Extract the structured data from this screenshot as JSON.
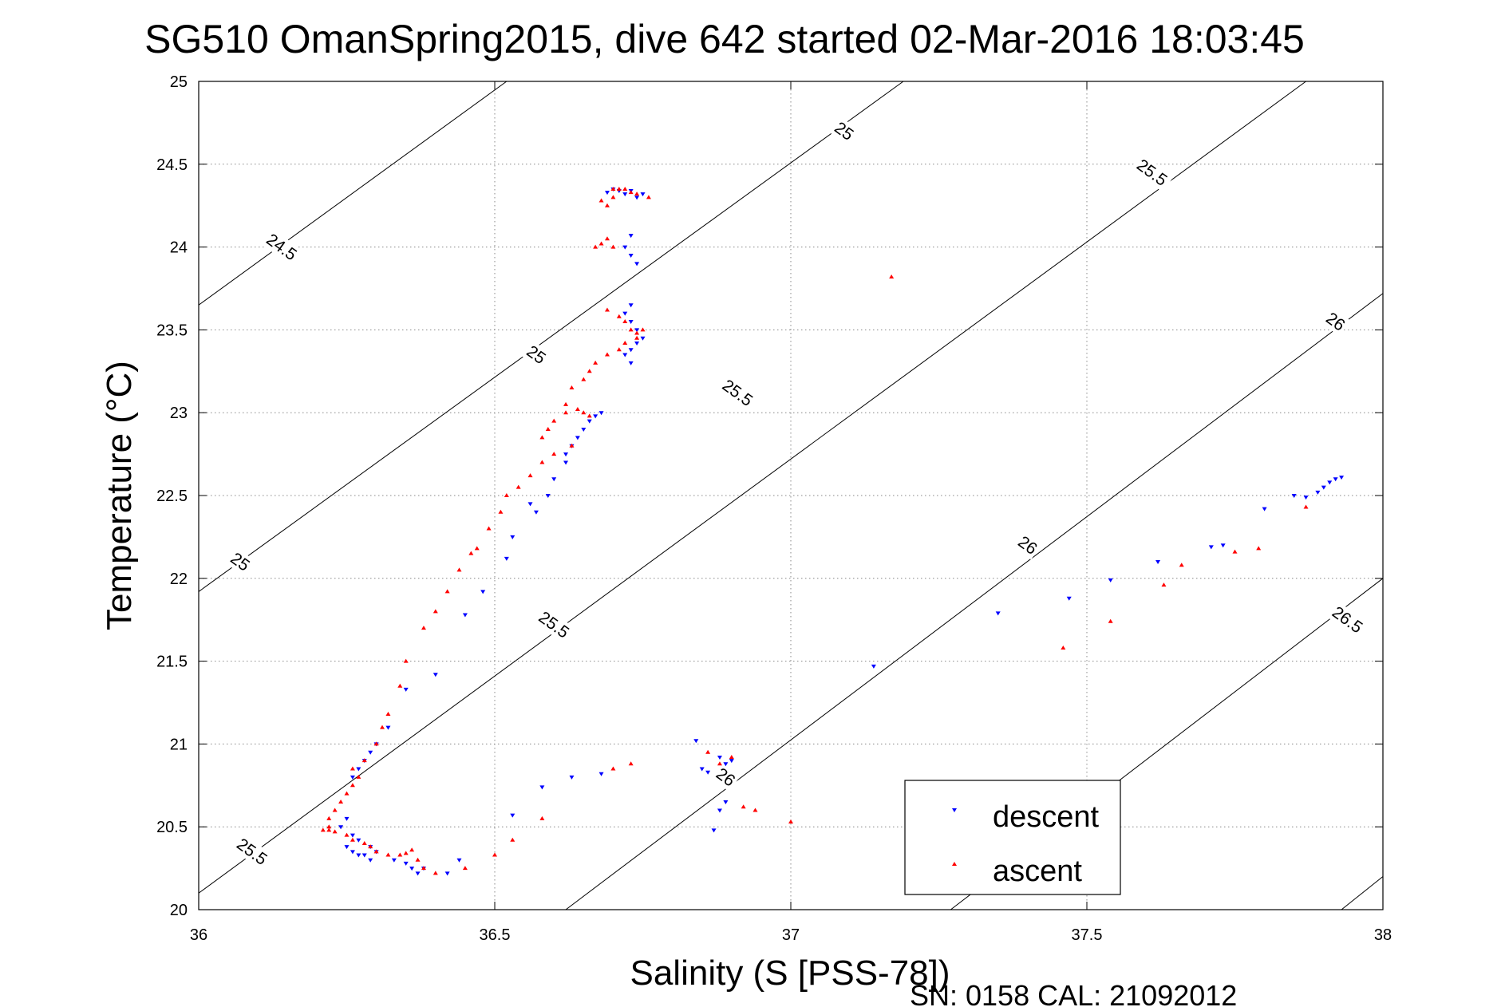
{
  "chart_data": {
    "type": "scatter",
    "title": "SG510 OmanSpring2015, dive 642 started 02-Mar-2016 18:03:45",
    "xlabel": "Salinity (S [PSS-78])",
    "ylabel": "Temperature (°C)",
    "footer": "SN: 0158  CAL: 21092012",
    "xlim": [
      36,
      38
    ],
    "ylim": [
      20,
      25
    ],
    "xticks": [
      36,
      36.5,
      37,
      37.5,
      38
    ],
    "yticks": [
      20,
      20.5,
      21,
      21.5,
      22,
      22.5,
      23,
      23.5,
      24,
      24.5,
      25
    ],
    "xtick_labels": [
      "36",
      "36.5",
      "37",
      "37.5",
      "38"
    ],
    "ytick_labels": [
      "20",
      "20.5",
      "21",
      "21.5",
      "22",
      "22.5",
      "23",
      "23.5",
      "24",
      "24.5",
      "25"
    ],
    "grid": true,
    "legend_position": "bottom-right",
    "isopycnals": [
      {
        "sigma": 24.5,
        "x0": 36,
        "y0": 23.65,
        "x1": 36.52,
        "y1": 25.0
      },
      {
        "sigma": 25,
        "x0": 36,
        "y0": 21.92,
        "x1": 37.19,
        "y1": 25.0
      },
      {
        "sigma": 25.5,
        "x0": 36,
        "y0": 20.1,
        "x1": 37.87,
        "y1": 25.0
      },
      {
        "sigma": 26,
        "x0": 36.62,
        "y0": 20.0,
        "x1": 38,
        "y1": 23.72
      },
      {
        "sigma": 26.5,
        "x0": 37.27,
        "y0": 20.0,
        "x1": 38,
        "y1": 22.0
      },
      {
        "sigma": 27,
        "x0": 37.93,
        "y0": 20.0,
        "x1": 38,
        "y1": 20.2
      }
    ],
    "isopycnal_labels": [
      {
        "text": "24.5",
        "x": 36.14,
        "y": 24.0
      },
      {
        "text": "25",
        "x": 37.09,
        "y": 24.7
      },
      {
        "text": "25",
        "x": 36.07,
        "y": 22.1
      },
      {
        "text": "25",
        "x": 36.57,
        "y": 23.35
      },
      {
        "text": "25.5",
        "x": 37.61,
        "y": 24.45
      },
      {
        "text": "25.5",
        "x": 36.91,
        "y": 23.12
      },
      {
        "text": "25.5",
        "x": 36.6,
        "y": 21.72
      },
      {
        "text": "25.5",
        "x": 36.09,
        "y": 20.35
      },
      {
        "text": "26",
        "x": 37.92,
        "y": 23.55
      },
      {
        "text": "26",
        "x": 37.4,
        "y": 22.2
      },
      {
        "text": "26",
        "x": 36.89,
        "y": 20.8
      },
      {
        "text": "26.5",
        "x": 37.94,
        "y": 21.75
      }
    ],
    "series": [
      {
        "name": "descent",
        "color": "#0000ff",
        "marker": "triangle-down",
        "x": [
          36.69,
          36.7,
          36.71,
          36.72,
          36.73,
          36.74,
          36.75,
          36.73,
          36.72,
          36.73,
          36.74,
          36.73,
          36.72,
          36.73,
          36.74,
          36.75,
          36.74,
          36.73,
          36.72,
          36.73,
          36.68,
          36.67,
          36.66,
          36.65,
          36.64,
          36.63,
          36.62,
          36.62,
          36.6,
          36.59,
          36.57,
          36.56,
          36.53,
          36.52,
          36.48,
          36.45,
          36.4,
          36.35,
          36.32,
          36.3,
          36.29,
          36.28,
          36.27,
          36.26,
          36.25,
          36.24,
          36.26,
          36.27,
          36.29,
          36.3,
          36.28,
          36.26,
          36.25,
          36.27,
          36.29,
          36.33,
          36.35,
          36.36,
          36.37,
          36.38,
          36.42,
          36.44,
          36.53,
          36.58,
          36.63,
          36.68,
          36.84,
          36.85,
          36.86,
          36.88,
          36.89,
          36.9,
          36.87,
          36.88,
          36.89,
          37.14,
          37.35,
          37.47,
          37.54,
          37.62,
          37.71,
          37.73,
          37.8,
          37.85,
          37.87,
          37.89,
          37.9,
          37.91,
          37.92,
          37.93
        ],
        "y": [
          24.33,
          24.35,
          24.34,
          24.32,
          24.34,
          24.3,
          24.32,
          24.07,
          24.0,
          23.95,
          23.9,
          23.65,
          23.6,
          23.55,
          23.5,
          23.45,
          23.42,
          23.38,
          23.35,
          23.3,
          23.0,
          22.98,
          22.95,
          22.9,
          22.85,
          22.8,
          22.75,
          22.7,
          22.6,
          22.5,
          22.4,
          22.45,
          22.25,
          22.12,
          21.92,
          21.78,
          21.42,
          21.33,
          21.1,
          21.0,
          20.95,
          20.9,
          20.85,
          20.8,
          20.55,
          20.5,
          20.45,
          20.42,
          20.38,
          20.35,
          20.33,
          20.35,
          20.38,
          20.33,
          20.3,
          20.3,
          20.28,
          20.25,
          20.22,
          20.25,
          20.22,
          20.3,
          20.57,
          20.74,
          20.8,
          20.82,
          21.02,
          20.85,
          20.83,
          20.92,
          20.88,
          20.9,
          20.48,
          20.6,
          20.65,
          21.47,
          21.79,
          21.88,
          21.99,
          22.1,
          22.19,
          22.2,
          22.42,
          22.5,
          22.49,
          22.52,
          22.55,
          22.58,
          22.6,
          22.61
        ]
      },
      {
        "name": "ascent",
        "color": "#ff0000",
        "marker": "triangle-up",
        "x": [
          36.7,
          36.71,
          36.72,
          36.73,
          36.74,
          36.76,
          36.68,
          36.69,
          36.7,
          36.67,
          36.68,
          36.69,
          36.7,
          36.69,
          36.71,
          36.72,
          36.73,
          36.74,
          36.75,
          36.74,
          36.72,
          36.71,
          36.69,
          36.67,
          36.66,
          36.65,
          36.63,
          36.62,
          36.62,
          36.6,
          36.58,
          36.59,
          36.64,
          36.65,
          36.66,
          36.63,
          36.6,
          36.58,
          36.56,
          36.54,
          36.52,
          36.51,
          36.49,
          36.47,
          36.46,
          36.44,
          36.42,
          36.4,
          36.38,
          36.35,
          36.34,
          36.32,
          36.31,
          36.3,
          36.28,
          36.27,
          36.26,
          36.26,
          36.25,
          36.24,
          36.23,
          36.22,
          36.22,
          36.21,
          36.22,
          36.23,
          36.25,
          36.26,
          36.28,
          36.29,
          36.3,
          36.32,
          36.34,
          36.35,
          36.36,
          36.37,
          36.38,
          36.4,
          36.45,
          36.5,
          36.53,
          36.58,
          36.7,
          36.73,
          36.86,
          36.88,
          36.9,
          36.92,
          36.94,
          37.0,
          37.17,
          37.46,
          37.54,
          37.63,
          37.66,
          37.75,
          37.79,
          37.87
        ],
        "y": [
          24.35,
          24.35,
          24.35,
          24.33,
          24.32,
          24.3,
          24.28,
          24.25,
          24.3,
          24.0,
          24.02,
          24.05,
          24.0,
          23.62,
          23.58,
          23.55,
          23.5,
          23.48,
          23.5,
          23.45,
          23.42,
          23.38,
          23.35,
          23.3,
          23.25,
          23.2,
          23.15,
          23.05,
          23.0,
          22.95,
          22.85,
          22.9,
          23.02,
          23.0,
          22.98,
          22.8,
          22.75,
          22.7,
          22.62,
          22.55,
          22.5,
          22.4,
          22.3,
          22.18,
          22.15,
          22.05,
          21.92,
          21.8,
          21.7,
          21.5,
          21.35,
          21.18,
          21.1,
          21.0,
          20.9,
          20.8,
          20.85,
          20.75,
          20.7,
          20.65,
          20.6,
          20.55,
          20.5,
          20.48,
          20.48,
          20.47,
          20.45,
          20.42,
          20.4,
          20.38,
          20.35,
          20.33,
          20.33,
          20.34,
          20.36,
          20.3,
          20.25,
          20.22,
          20.25,
          20.33,
          20.42,
          20.55,
          20.85,
          20.88,
          20.95,
          20.88,
          20.92,
          20.62,
          20.6,
          20.53,
          23.82,
          21.58,
          21.74,
          21.96,
          22.08,
          22.16,
          22.18,
          22.43
        ]
      }
    ]
  }
}
